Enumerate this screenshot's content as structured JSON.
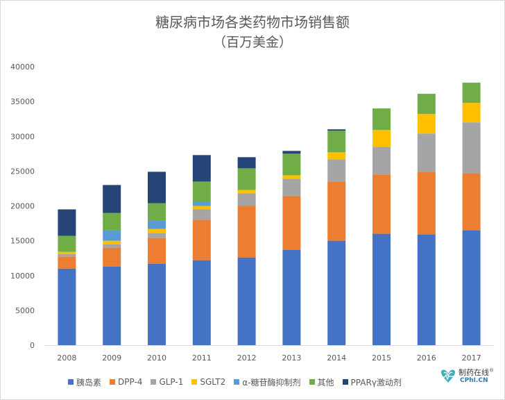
{
  "chart_data": {
    "type": "bar",
    "stacked": true,
    "title": "糖尿病市场各类药物市场销售额",
    "subtitle": "（百万美金）",
    "xlabel": "",
    "ylabel": "",
    "ylim": [
      0,
      40000
    ],
    "yticks": [
      0,
      5000,
      10000,
      15000,
      20000,
      25000,
      30000,
      35000,
      40000
    ],
    "grid": false,
    "legend_position": "bottom",
    "categories": [
      "2008",
      "2009",
      "2010",
      "2011",
      "2012",
      "2013",
      "2014",
      "2015",
      "2016",
      "2017"
    ],
    "series": [
      {
        "name": "胰岛素",
        "color": "#4472c4",
        "values": [
          11000,
          11300,
          11700,
          12200,
          12600,
          13700,
          15000,
          16000,
          15900,
          16500
        ]
      },
      {
        "name": "DPP-4",
        "color": "#ed7d31",
        "values": [
          1700,
          2700,
          3700,
          5800,
          7400,
          7700,
          8500,
          8500,
          9000,
          8200
        ]
      },
      {
        "name": "GLP-1",
        "color": "#a5a5a5",
        "values": [
          400,
          500,
          700,
          1500,
          1800,
          2500,
          3200,
          4000,
          5500,
          7300
        ]
      },
      {
        "name": "SGLT2",
        "color": "#ffc000",
        "values": [
          300,
          500,
          600,
          500,
          500,
          500,
          1000,
          2400,
          2800,
          2800
        ]
      },
      {
        "name": "α-糖苷酶抑制剂",
        "color": "#5b9bd5",
        "values": [
          0,
          1500,
          1200,
          600,
          0,
          0,
          0,
          0,
          0,
          0
        ]
      },
      {
        "name": "其他",
        "color": "#70ad47",
        "values": [
          2300,
          2500,
          2500,
          2900,
          3100,
          3100,
          3100,
          3100,
          2900,
          2900
        ]
      },
      {
        "name": "PPARγ激动剂",
        "color": "#264478",
        "values": [
          3800,
          4000,
          4500,
          3800,
          1600,
          400,
          200,
          0,
          0,
          0
        ]
      }
    ]
  },
  "watermark": {
    "text": "制药在线",
    "sub": "CPhI.CN",
    "mark": "®",
    "logo_icon": "heart-logo-icon"
  }
}
